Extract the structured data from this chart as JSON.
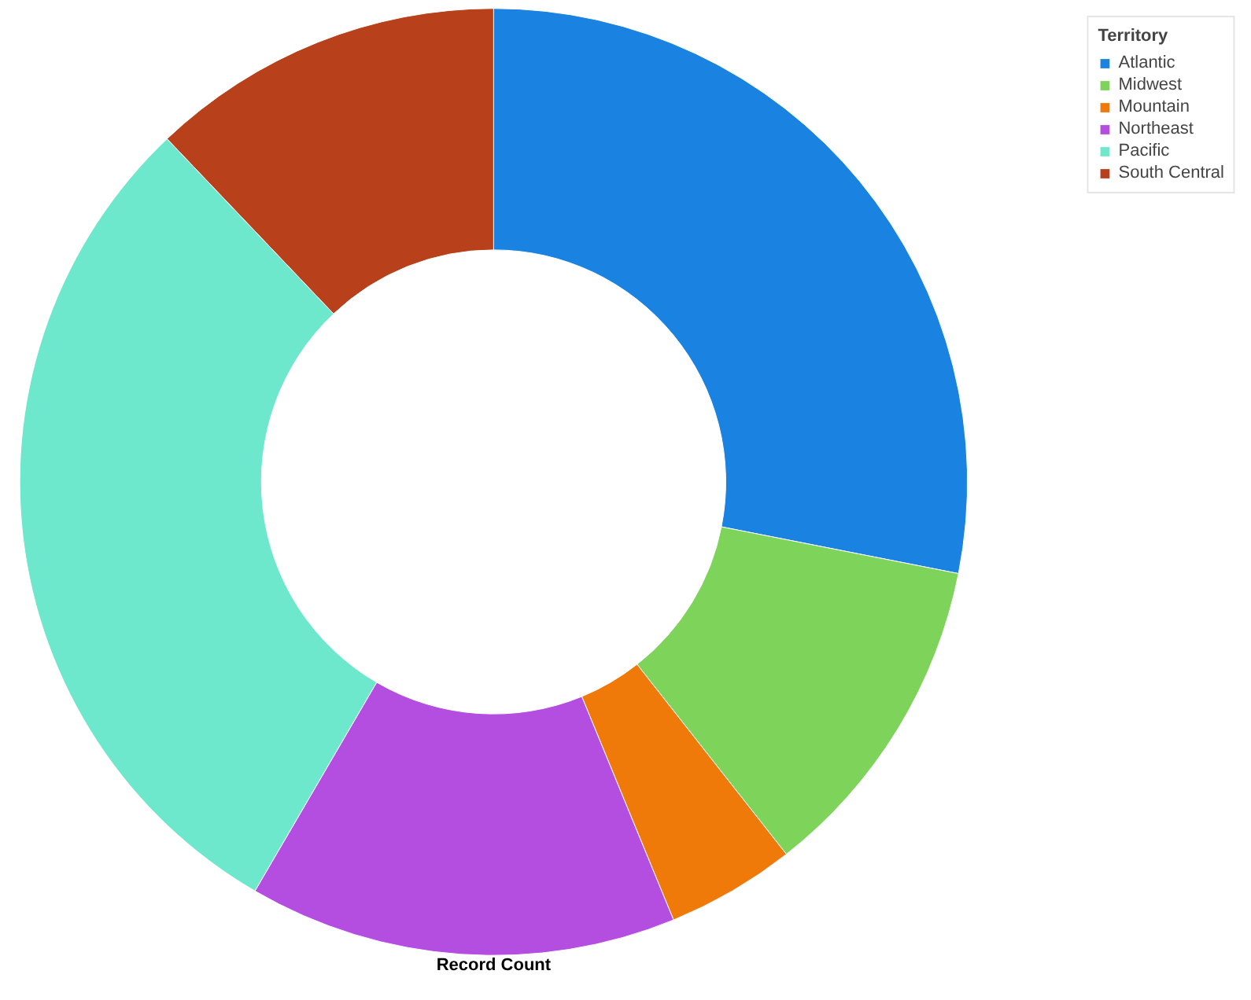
{
  "chart_data": {
    "type": "donut",
    "xlabel": "Record Count",
    "legend_title": "Territory",
    "legend": "top right",
    "categories": [
      "Atlantic",
      "Midwest",
      "Mountain",
      "Northeast",
      "Pacific",
      "South Central"
    ],
    "values": [
      28.1,
      11.3,
      4.4,
      14.6,
      29.5,
      12.1
    ],
    "colors": [
      "#1a82e0",
      "#7ed45a",
      "#ef7a0a",
      "#b44ee0",
      "#6ee8cc",
      "#b8401a"
    ]
  }
}
